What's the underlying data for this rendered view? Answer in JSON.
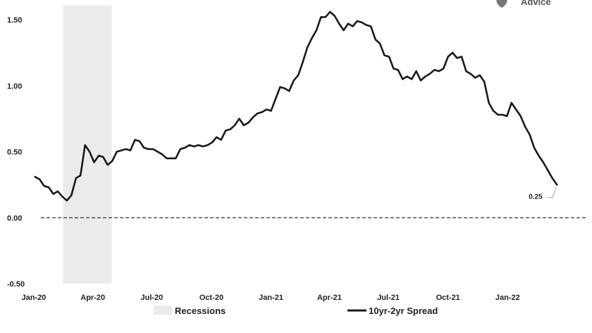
{
  "logo": {
    "text": "Advice",
    "icon": "shield-icon"
  },
  "chart_data": {
    "type": "line",
    "title": "",
    "xlabel": "",
    "ylabel": "",
    "x_start": "2020-01",
    "x_end": "2022-03",
    "xlim": [
      "2020-01",
      "2022-03"
    ],
    "ylim": [
      -0.5,
      1.6
    ],
    "yticks": [
      "1.50",
      "1.00",
      "0.50",
      "0.00",
      "-0.50"
    ],
    "ytick_values": [
      1.5,
      1.0,
      0.5,
      0.0,
      -0.5
    ],
    "xticks": [
      "Jan-20",
      "Apr-20",
      "Jul-20",
      "Oct-20",
      "Jan-21",
      "Apr-21",
      "Jul-21",
      "Oct-21",
      "Jan-22"
    ],
    "xtick_dates": [
      "2020-01",
      "2020-04",
      "2020-07",
      "2020-10",
      "2021-01",
      "2021-04",
      "2021-07",
      "2021-10",
      "2022-01"
    ],
    "zero_line": {
      "value": 0.0,
      "style": "dashed"
    },
    "recession": {
      "name": "Recessions",
      "start": "2020-02",
      "end": "2020-04",
      "color": "#ebebeb"
    },
    "series": [
      {
        "name": "10yr-2yr Spread",
        "color": "#1a1a1a",
        "x": [
          "2020-01-03",
          "2020-01-10",
          "2020-01-17",
          "2020-01-24",
          "2020-01-31",
          "2020-02-07",
          "2020-02-14",
          "2020-02-21",
          "2020-02-28",
          "2020-03-06",
          "2020-03-13",
          "2020-03-20",
          "2020-03-27",
          "2020-04-03",
          "2020-04-10",
          "2020-04-17",
          "2020-04-24",
          "2020-05-01",
          "2020-05-08",
          "2020-05-15",
          "2020-05-22",
          "2020-05-29",
          "2020-06-05",
          "2020-06-12",
          "2020-06-19",
          "2020-06-26",
          "2020-07-03",
          "2020-07-10",
          "2020-07-17",
          "2020-07-24",
          "2020-07-31",
          "2020-08-07",
          "2020-08-14",
          "2020-08-21",
          "2020-08-28",
          "2020-09-04",
          "2020-09-11",
          "2020-09-18",
          "2020-09-25",
          "2020-10-02",
          "2020-10-09",
          "2020-10-16",
          "2020-10-23",
          "2020-10-30",
          "2020-11-06",
          "2020-11-13",
          "2020-11-20",
          "2020-11-27",
          "2020-12-04",
          "2020-12-11",
          "2020-12-18",
          "2020-12-25",
          "2021-01-01",
          "2021-01-08",
          "2021-01-15",
          "2021-01-22",
          "2021-01-29",
          "2021-02-05",
          "2021-02-12",
          "2021-02-19",
          "2021-02-26",
          "2021-03-05",
          "2021-03-12",
          "2021-03-19",
          "2021-03-26",
          "2021-04-02",
          "2021-04-09",
          "2021-04-16",
          "2021-04-23",
          "2021-04-30",
          "2021-05-07",
          "2021-05-14",
          "2021-05-21",
          "2021-05-28",
          "2021-06-04",
          "2021-06-11",
          "2021-06-18",
          "2021-06-25",
          "2021-07-02",
          "2021-07-09",
          "2021-07-16",
          "2021-07-23",
          "2021-07-30",
          "2021-08-06",
          "2021-08-13",
          "2021-08-20",
          "2021-08-27",
          "2021-09-03",
          "2021-09-10",
          "2021-09-17",
          "2021-09-24",
          "2021-10-01",
          "2021-10-08",
          "2021-10-15",
          "2021-10-22",
          "2021-10-29",
          "2021-11-05",
          "2021-11-12",
          "2021-11-19",
          "2021-11-26",
          "2021-12-03",
          "2021-12-10",
          "2021-12-17",
          "2021-12-24",
          "2021-12-31",
          "2022-01-07",
          "2022-01-14",
          "2022-01-21",
          "2022-01-28",
          "2022-02-04",
          "2022-02-11",
          "2022-02-18",
          "2022-02-25",
          "2022-03-04",
          "2022-03-11",
          "2022-03-18"
        ],
        "values": [
          0.31,
          0.29,
          0.24,
          0.23,
          0.18,
          0.2,
          0.16,
          0.13,
          0.17,
          0.3,
          0.32,
          0.55,
          0.5,
          0.42,
          0.47,
          0.46,
          0.4,
          0.43,
          0.5,
          0.51,
          0.52,
          0.51,
          0.59,
          0.58,
          0.53,
          0.52,
          0.52,
          0.5,
          0.48,
          0.45,
          0.45,
          0.45,
          0.52,
          0.53,
          0.55,
          0.54,
          0.55,
          0.54,
          0.55,
          0.57,
          0.61,
          0.59,
          0.66,
          0.67,
          0.7,
          0.75,
          0.7,
          0.72,
          0.76,
          0.79,
          0.8,
          0.82,
          0.81,
          0.9,
          0.99,
          0.98,
          0.96,
          1.04,
          1.08,
          1.18,
          1.29,
          1.36,
          1.42,
          1.52,
          1.52,
          1.56,
          1.53,
          1.47,
          1.42,
          1.47,
          1.45,
          1.49,
          1.48,
          1.46,
          1.45,
          1.35,
          1.32,
          1.23,
          1.22,
          1.13,
          1.12,
          1.05,
          1.07,
          1.05,
          1.11,
          1.04,
          1.07,
          1.09,
          1.12,
          1.11,
          1.13,
          1.22,
          1.25,
          1.21,
          1.22,
          1.11,
          1.09,
          1.06,
          1.08,
          1.03,
          0.87,
          0.81,
          0.78,
          0.78,
          0.77,
          0.87,
          0.82,
          0.77,
          0.69,
          0.63,
          0.53,
          0.47,
          0.42,
          0.36,
          0.3,
          0.25
        ]
      }
    ],
    "annotations": [
      {
        "text": "0.25",
        "x": "2022-03-18",
        "y": 0.25
      }
    ],
    "legend": {
      "position": "bottom",
      "items": [
        {
          "label": "Recessions",
          "kind": "area",
          "color": "#ebebeb"
        },
        {
          "label": "10yr-2yr Spread",
          "kind": "line",
          "color": "#1a1a1a"
        }
      ]
    },
    "grid": false
  }
}
